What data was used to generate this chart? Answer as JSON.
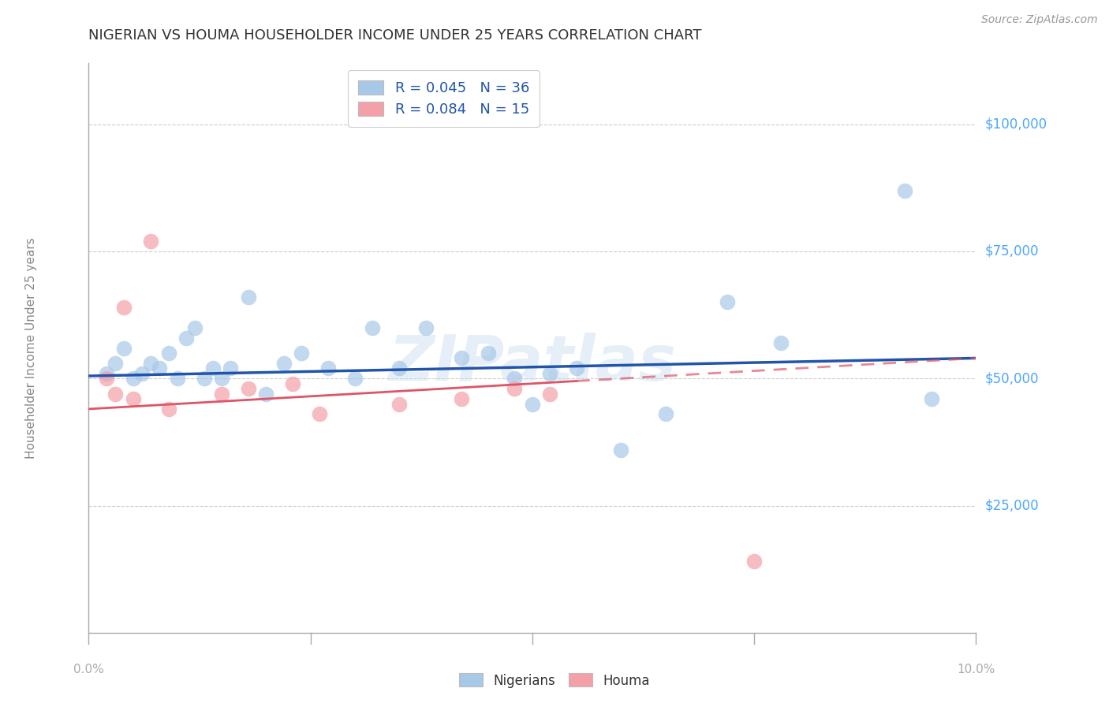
{
  "title": "NIGERIAN VS HOUMA HOUSEHOLDER INCOME UNDER 25 YEARS CORRELATION CHART",
  "source": "Source: ZipAtlas.com",
  "ylabel": "Householder Income Under 25 years",
  "xlim": [
    0.0,
    10.0
  ],
  "ylim": [
    0,
    112000
  ],
  "legend_blue_r": "R = 0.045",
  "legend_blue_n": "N = 36",
  "legend_pink_r": "R = 0.084",
  "legend_pink_n": "N = 15",
  "legend1": "Nigerians",
  "legend2": "Houma",
  "watermark": "ZIPatlas",
  "blue_color": "#a8c8e8",
  "pink_color": "#f4a0a8",
  "blue_line_color": "#2255aa",
  "pink_line_color": "#dd5566",
  "nigerians_x": [
    0.2,
    0.3,
    0.4,
    0.5,
    0.6,
    0.7,
    0.8,
    0.9,
    1.0,
    1.1,
    1.2,
    1.3,
    1.4,
    1.5,
    1.6,
    1.8,
    2.0,
    2.2,
    2.4,
    2.7,
    3.0,
    3.2,
    3.5,
    3.8,
    4.2,
    4.5,
    4.8,
    5.0,
    5.2,
    5.5,
    6.0,
    6.5,
    7.2,
    7.8,
    9.2,
    9.5
  ],
  "nigerians_y": [
    51000,
    53000,
    56000,
    50000,
    51000,
    53000,
    52000,
    55000,
    50000,
    58000,
    60000,
    50000,
    52000,
    50000,
    52000,
    66000,
    47000,
    53000,
    55000,
    52000,
    50000,
    60000,
    52000,
    60000,
    54000,
    55000,
    50000,
    45000,
    51000,
    52000,
    36000,
    43000,
    65000,
    57000,
    87000,
    46000
  ],
  "houma_x": [
    0.2,
    0.3,
    0.4,
    0.5,
    0.7,
    0.9,
    1.5,
    1.8,
    2.3,
    2.6,
    3.5,
    4.2,
    4.8,
    5.2,
    7.5
  ],
  "houma_y": [
    50000,
    47000,
    64000,
    46000,
    77000,
    44000,
    47000,
    48000,
    49000,
    43000,
    45000,
    46000,
    48000,
    47000,
    14000
  ],
  "blue_trend_x": [
    0.0,
    10.0
  ],
  "blue_trend_y": [
    50500,
    54000
  ],
  "pink_trend_x": [
    0.0,
    10.0
  ],
  "pink_trend_y": [
    44000,
    54000
  ],
  "bg_color": "#ffffff",
  "grid_color": "#cccccc",
  "axis_color": "#aaaaaa",
  "title_color": "#333333",
  "right_label_color": "#4da6ff",
  "source_color": "#999999",
  "ylabel_color": "#888888",
  "xtick_positions": [
    0.0,
    2.5,
    5.0,
    7.5,
    10.0
  ],
  "ytick_labels_values": [
    25000,
    50000,
    75000,
    100000
  ],
  "ytick_labels_text": [
    "$25,000",
    "$50,000",
    "$75,000",
    "$100,000"
  ]
}
